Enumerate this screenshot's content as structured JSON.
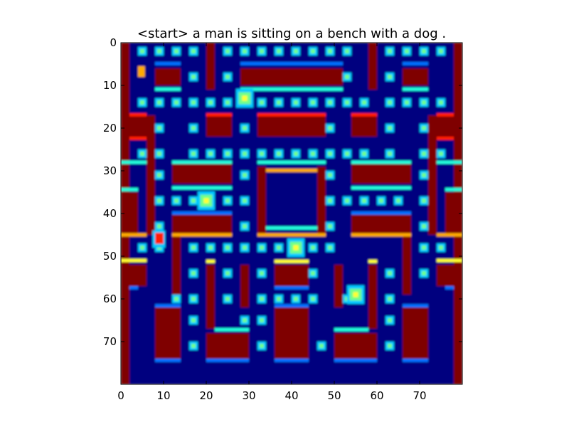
{
  "chart_data": {
    "type": "heatmap",
    "title": "<start> a man is sitting on a bench with a dog .",
    "xlabel": "",
    "ylabel": "",
    "grid": false,
    "colormap": "jet",
    "xlim": [
      0,
      80
    ],
    "ylim": [
      80,
      0
    ],
    "x_ticks": [
      0,
      10,
      20,
      30,
      40,
      50,
      60,
      70
    ],
    "y_ticks": [
      0,
      10,
      20,
      30,
      40,
      50,
      60,
      70
    ],
    "colors": {
      "background": "#00007f",
      "wall": "#7f0000",
      "wall_edge_red": "#ff1a00",
      "wall_edge_orange": "#ffaa00",
      "edge_cyan": "#22ffdc",
      "edge_blue": "#0070ff",
      "pellet_outer": "#00c8ff",
      "pellet_inner": "#70ff8a",
      "sprite_core": "#ffff30",
      "axes_frame": "#000000",
      "figure_bg": "#ffffff"
    }
  }
}
